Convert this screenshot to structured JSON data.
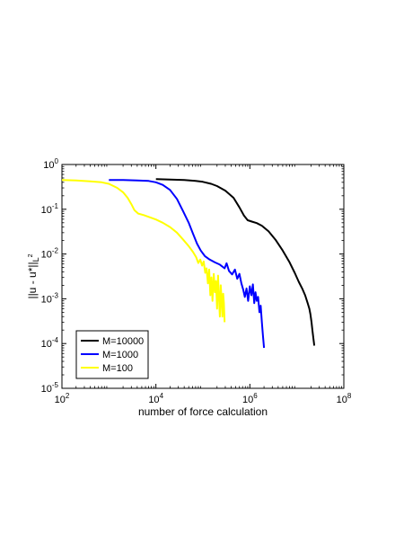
{
  "chart_data": {
    "type": "line",
    "title": "",
    "xlabel": "number of force calculation",
    "ylabel": "||u - u*||",
    "ylabel_subscript": "L",
    "ylabel_superscript": "2",
    "x_scale": "log",
    "y_scale": "log",
    "xlim": [
      100,
      100000000
    ],
    "ylim": [
      1e-05,
      1
    ],
    "x_ticks": [
      {
        "value": 100,
        "base": "10",
        "exp": "2"
      },
      {
        "value": 10000,
        "base": "10",
        "exp": "4"
      },
      {
        "value": 1000000,
        "base": "10",
        "exp": "6"
      },
      {
        "value": 100000000,
        "base": "10",
        "exp": "8"
      }
    ],
    "y_ticks": [
      {
        "value": 1e-05,
        "base": "10",
        "exp": "-5"
      },
      {
        "value": 0.0001,
        "base": "10",
        "exp": "-4"
      },
      {
        "value": 0.001,
        "base": "10",
        "exp": "-3"
      },
      {
        "value": 0.01,
        "base": "10",
        "exp": "-2"
      },
      {
        "value": 0.1,
        "base": "10",
        "exp": "-1"
      },
      {
        "value": 1,
        "base": "10",
        "exp": "0"
      }
    ],
    "grid": false,
    "legend_position": "bottom-left",
    "series": [
      {
        "name": "M=10000",
        "color": "#000000",
        "points": [
          [
            10000,
            0.47
          ],
          [
            20000,
            0.46
          ],
          [
            40000,
            0.45
          ],
          [
            70000,
            0.43
          ],
          [
            100000,
            0.41
          ],
          [
            150000,
            0.37
          ],
          [
            200000,
            0.33
          ],
          [
            300000,
            0.26
          ],
          [
            450000,
            0.18
          ],
          [
            600000,
            0.11
          ],
          [
            750000,
            0.072
          ],
          [
            900000,
            0.057
          ],
          [
            1100000,
            0.053
          ],
          [
            1400000,
            0.049
          ],
          [
            1800000,
            0.043
          ],
          [
            2500000,
            0.032
          ],
          [
            3500000,
            0.021
          ],
          [
            5000000,
            0.012
          ],
          [
            7000000,
            0.0065
          ],
          [
            9000000,
            0.0038
          ],
          [
            11000000,
            0.0024
          ],
          [
            13000000,
            0.0017
          ],
          [
            15000000,
            0.0012
          ],
          [
            17000000,
            0.0008
          ],
          [
            18500000,
            0.0006
          ],
          [
            19500000,
            0.00045
          ],
          [
            20500000,
            0.0003
          ],
          [
            21500000,
            0.00019
          ],
          [
            22500000,
            0.00013
          ],
          [
            23500000,
            9e-05
          ]
        ]
      },
      {
        "name": "M=1000",
        "color": "#0000ff",
        "points": [
          [
            1000,
            0.45
          ],
          [
            2000,
            0.45
          ],
          [
            4000,
            0.44
          ],
          [
            7000,
            0.43
          ],
          [
            10000,
            0.4
          ],
          [
            14000,
            0.35
          ],
          [
            20000,
            0.27
          ],
          [
            28000,
            0.17
          ],
          [
            38000,
            0.09
          ],
          [
            50000,
            0.05
          ],
          [
            62000,
            0.028
          ],
          [
            75000,
            0.017
          ],
          [
            90000,
            0.012
          ],
          [
            110000,
            0.009
          ],
          [
            140000,
            0.0075
          ],
          [
            180000,
            0.0065
          ],
          [
            230000,
            0.0058
          ],
          [
            290000,
            0.0048
          ],
          [
            320000,
            0.0062
          ],
          [
            360000,
            0.0042
          ],
          [
            420000,
            0.0035
          ],
          [
            480000,
            0.0045
          ],
          [
            540000,
            0.0028
          ],
          [
            600000,
            0.0036
          ],
          [
            660000,
            0.0022
          ],
          [
            720000,
            0.0016
          ],
          [
            780000,
            0.0011
          ],
          [
            850000,
            0.0017
          ],
          [
            920000,
            0.0009
          ],
          [
            1000000,
            0.0019
          ],
          [
            1080000,
            0.0012
          ],
          [
            1160000,
            0.0021
          ],
          [
            1240000,
            0.0008
          ],
          [
            1320000,
            0.0014
          ],
          [
            1400000,
            0.0009
          ],
          [
            1500000,
            0.0011
          ],
          [
            1600000,
            0.0005
          ],
          [
            1700000,
            0.0007
          ],
          [
            1800000,
            0.0003
          ],
          [
            1900000,
            0.00015
          ],
          [
            2000000,
            8e-05
          ]
        ]
      },
      {
        "name": "M=100",
        "color": "#ffff00",
        "points": [
          [
            100,
            0.45
          ],
          [
            200,
            0.44
          ],
          [
            400,
            0.42
          ],
          [
            700,
            0.4
          ],
          [
            1000,
            0.37
          ],
          [
            1500,
            0.3
          ],
          [
            2000,
            0.24
          ],
          [
            2500,
            0.18
          ],
          [
            3000,
            0.13
          ],
          [
            3500,
            0.095
          ],
          [
            4200,
            0.08
          ],
          [
            5500,
            0.074
          ],
          [
            7500,
            0.066
          ],
          [
            10000,
            0.059
          ],
          [
            14000,
            0.05
          ],
          [
            20000,
            0.04
          ],
          [
            28000,
            0.03
          ],
          [
            38000,
            0.021
          ],
          [
            50000,
            0.015
          ],
          [
            62000,
            0.011
          ],
          [
            72000,
            0.0085
          ],
          [
            80000,
            0.0063
          ],
          [
            88000,
            0.0075
          ],
          [
            96000,
            0.0055
          ],
          [
            104000,
            0.0068
          ],
          [
            112000,
            0.0038
          ],
          [
            120000,
            0.0048
          ],
          [
            128000,
            0.0022
          ],
          [
            136000,
            0.0045
          ],
          [
            144000,
            0.0012
          ],
          [
            152000,
            0.003
          ],
          [
            160000,
            0.0009
          ],
          [
            170000,
            0.0036
          ],
          [
            180000,
            0.0014
          ],
          [
            190000,
            0.0025
          ],
          [
            200000,
            0.0006
          ],
          [
            210000,
            0.0033
          ],
          [
            220000,
            0.0011
          ],
          [
            230000,
            0.0004
          ],
          [
            240000,
            0.002
          ],
          [
            250000,
            0.001
          ],
          [
            260000,
            0.0004
          ],
          [
            270000,
            0.0013
          ],
          [
            280000,
            0.0008
          ],
          [
            290000,
            0.0003
          ]
        ]
      }
    ]
  }
}
